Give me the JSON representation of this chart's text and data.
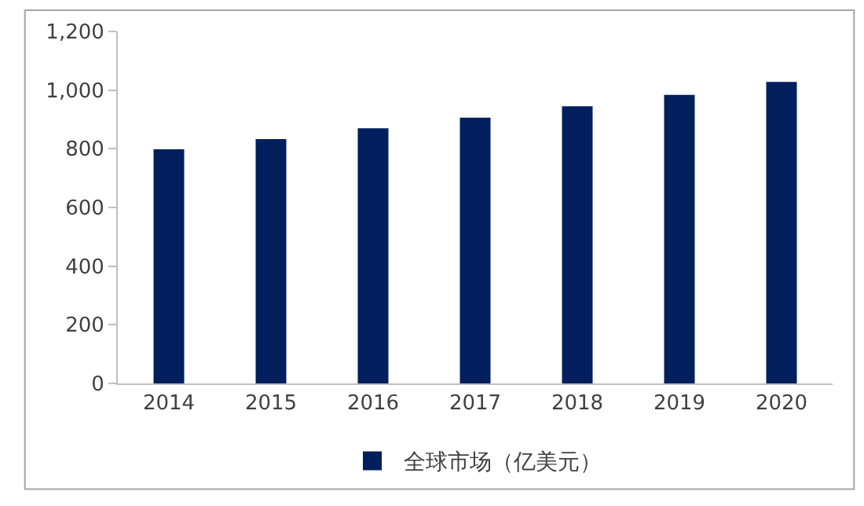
{
  "chart_data": {
    "type": "bar",
    "categories": [
      "2014",
      "2015",
      "2016",
      "2017",
      "2018",
      "2019",
      "2020"
    ],
    "series": [
      {
        "name": "全球市场（亿美元）",
        "color": "#001f5c",
        "values": [
          798,
          833,
          870,
          906,
          945,
          984,
          1028
        ]
      }
    ],
    "ylim": [
      0,
      1200
    ],
    "yticks": [
      0,
      200,
      400,
      600,
      800,
      {
        "value": 1000,
        "label": "1,000"
      },
      {
        "value": 1200,
        "label": "1,200"
      }
    ],
    "legend": "bottom"
  }
}
